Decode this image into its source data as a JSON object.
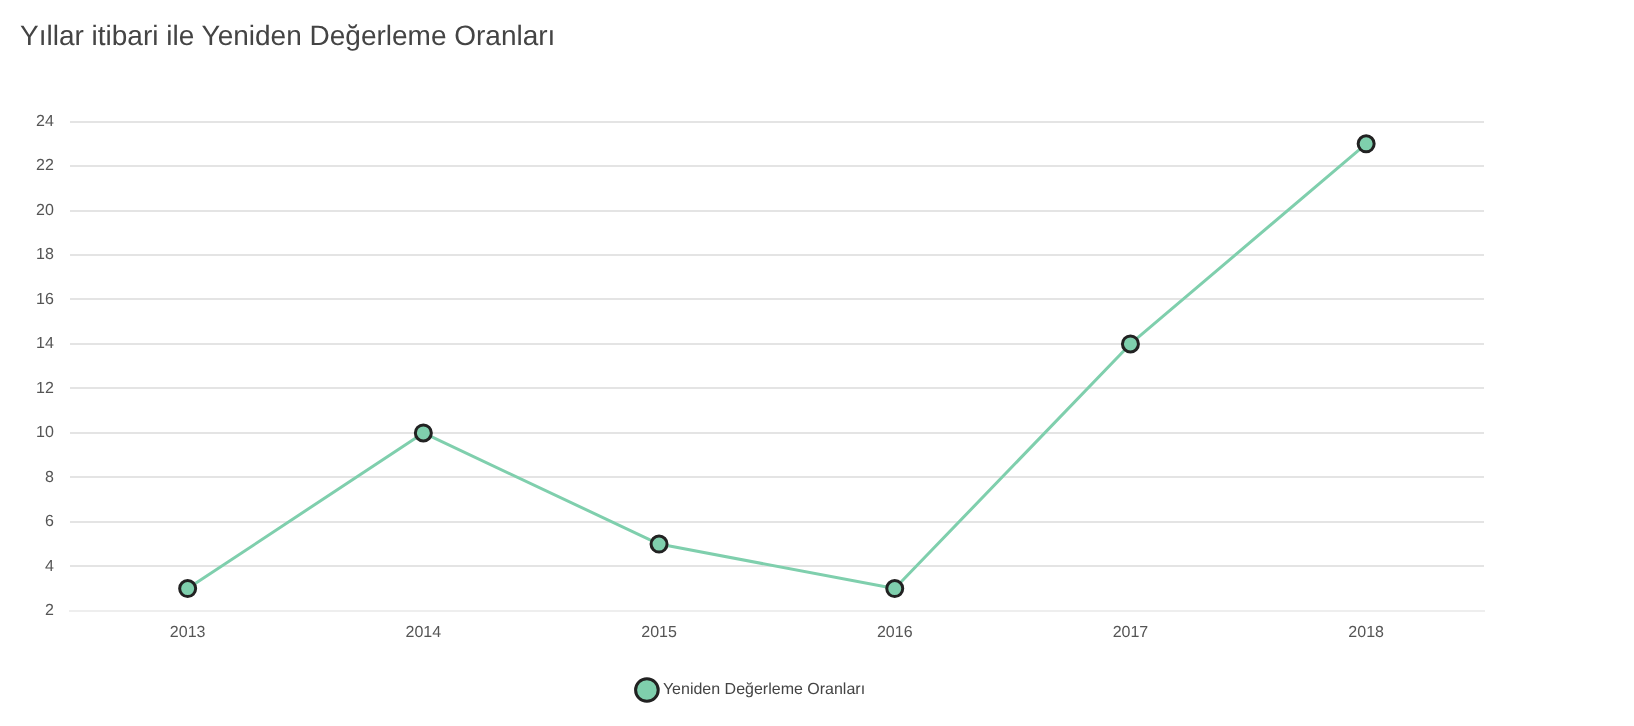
{
  "chart_data": {
    "type": "line",
    "title": "Yıllar itibari ile Yeniden Değerleme Oranları",
    "categories": [
      "2013",
      "2014",
      "2015",
      "2016",
      "2017",
      "2018"
    ],
    "series": [
      {
        "name": "Yeniden Değerleme Oranları",
        "color": "#7fcfad",
        "values": [
          3,
          10,
          5,
          3,
          14,
          23
        ]
      }
    ],
    "ylim": [
      2,
      24
    ],
    "yticks": [
      2,
      4,
      6,
      8,
      10,
      12,
      14,
      16,
      18,
      20,
      22,
      24
    ],
    "grid": "y",
    "legend": "bottom",
    "marker": "circle",
    "line_style": "solid"
  }
}
